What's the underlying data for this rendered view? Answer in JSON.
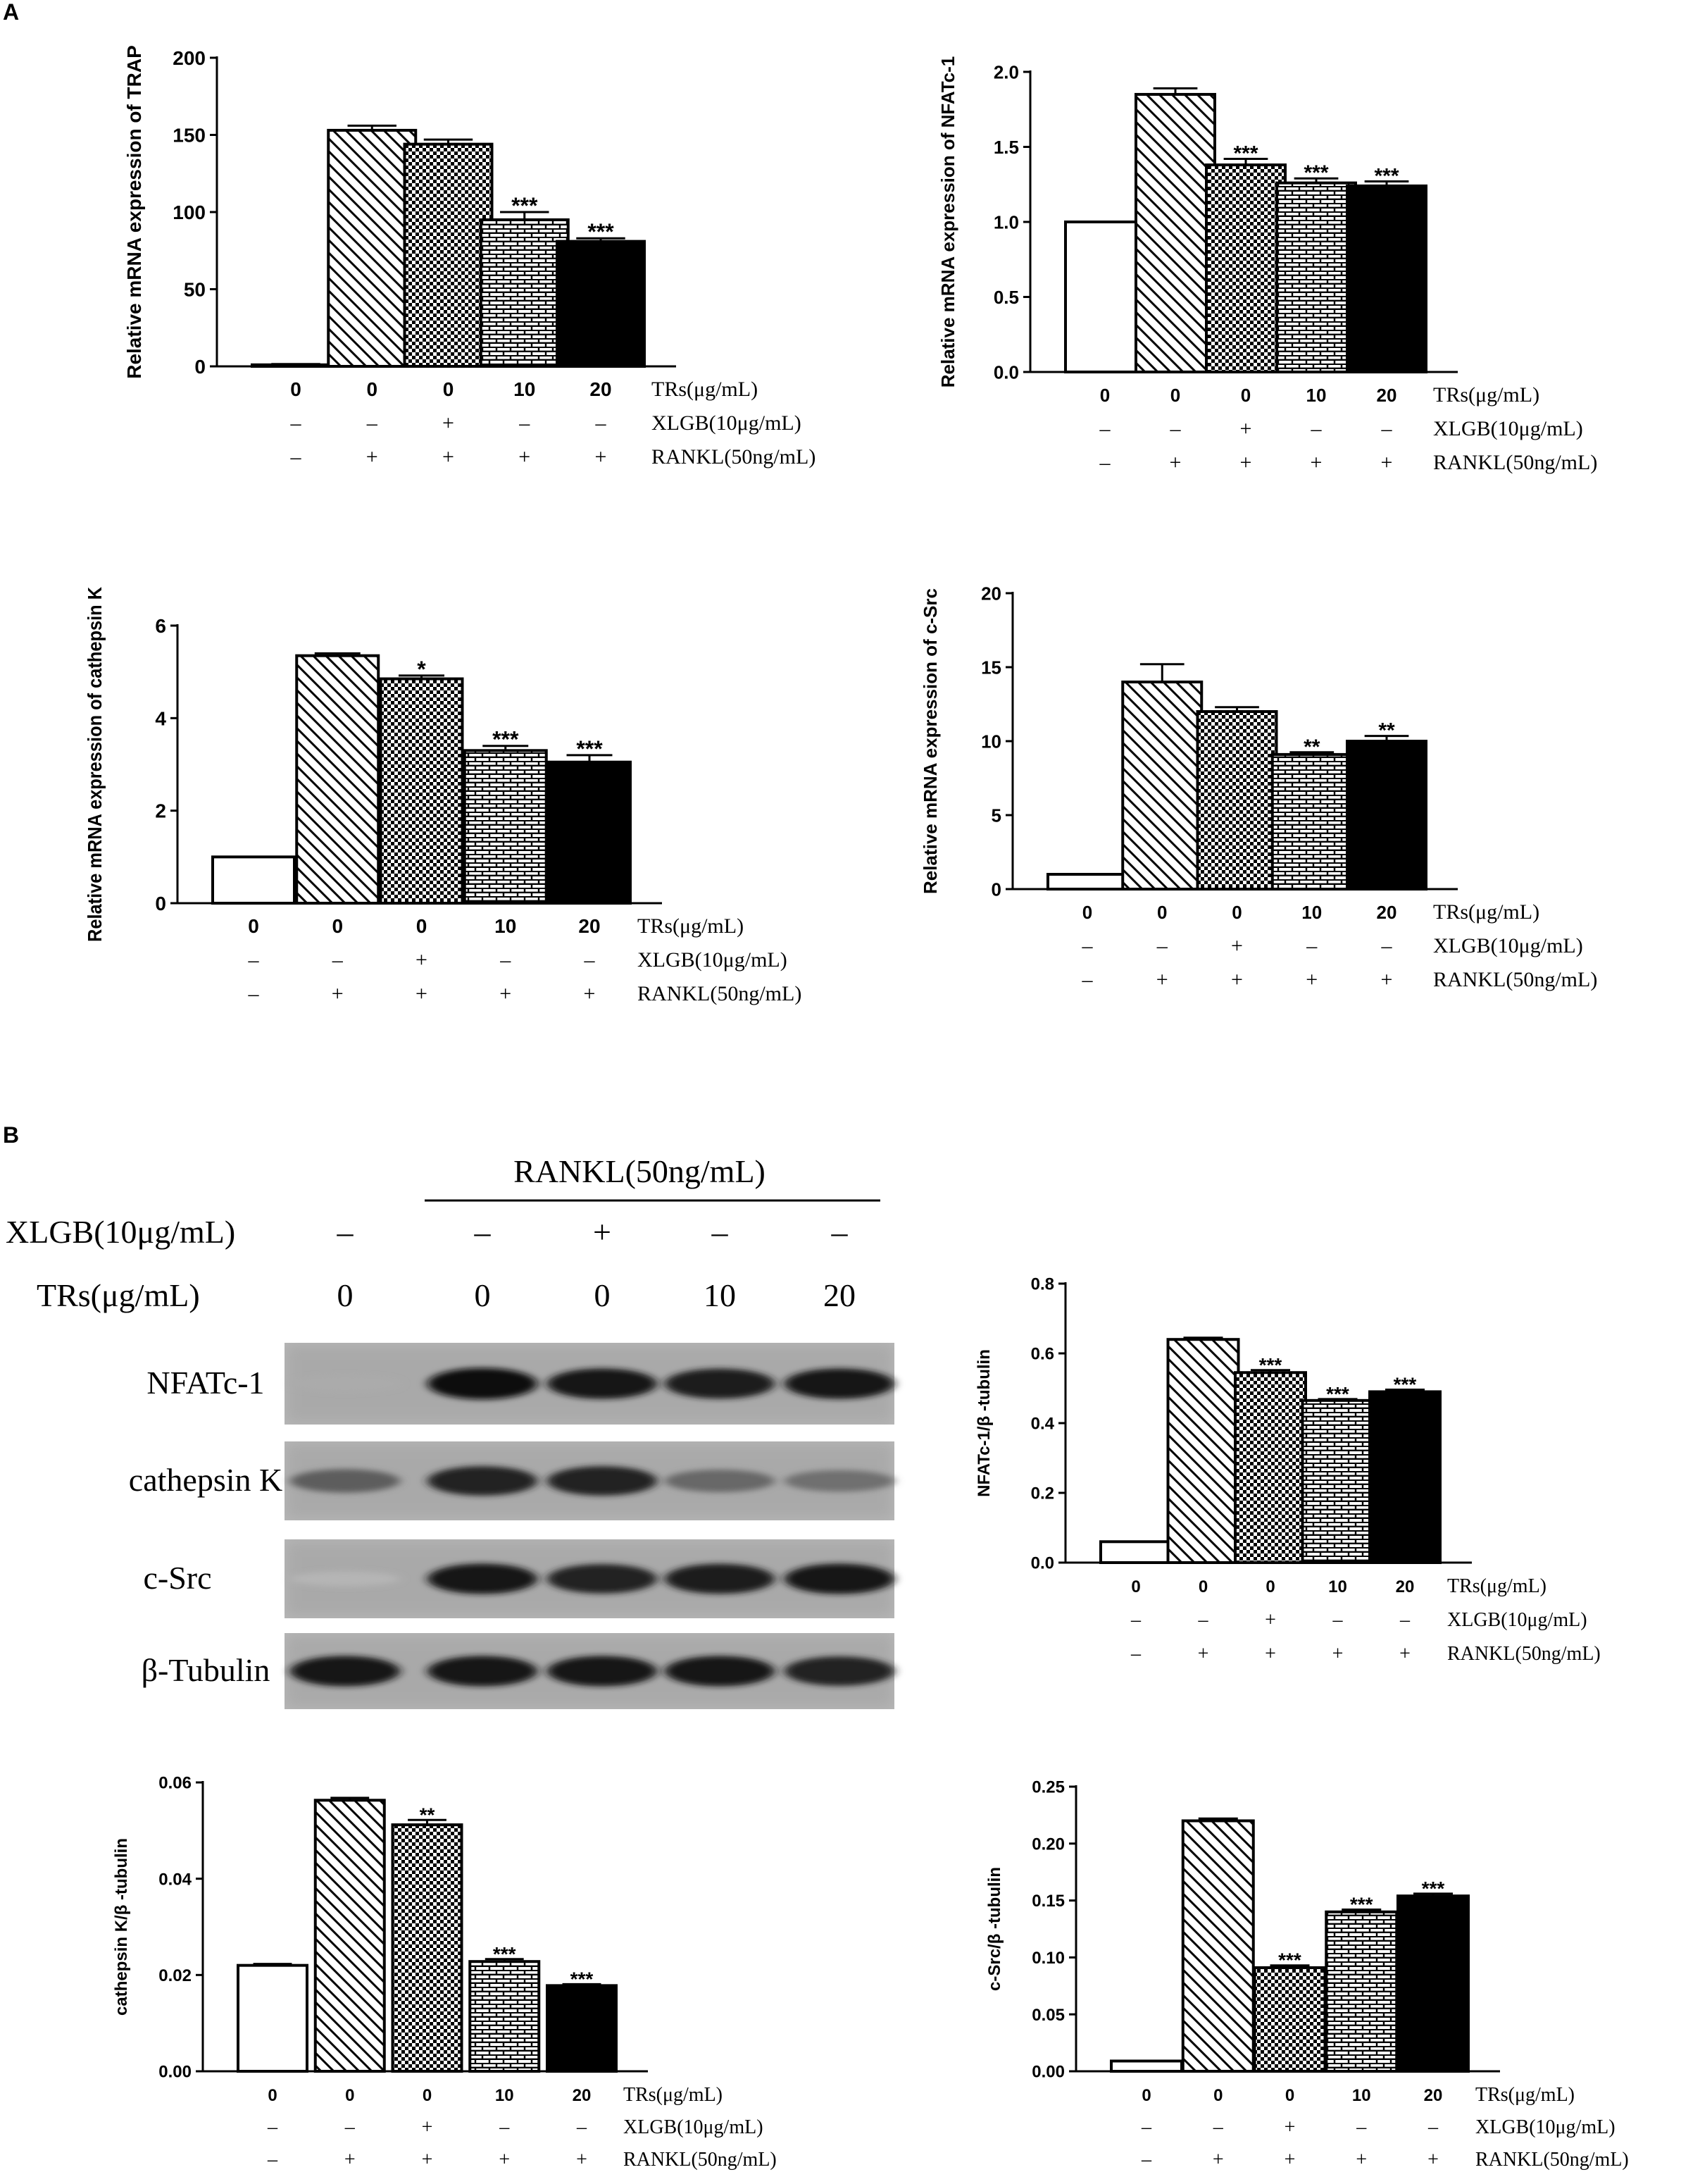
{
  "panels": {
    "a": "A",
    "b": "B"
  },
  "colors": {
    "ink": "#000000",
    "paper": "#ffffff"
  },
  "fills": [
    "empty",
    "diagonal-stripes",
    "checkerboard",
    "brick",
    "solid-black"
  ],
  "row_labels": [
    "TRs(μg/mL)",
    "XLGB(10μg/mL)",
    "RANKL(50ng/mL)"
  ],
  "groups": [
    {
      "trs": "0",
      "xlgb": "–",
      "rankl": "–"
    },
    {
      "trs": "0",
      "xlgb": "–",
      "rankl": "+"
    },
    {
      "trs": "0",
      "xlgb": "+",
      "rankl": "+"
    },
    {
      "trs": "10",
      "xlgb": "–",
      "rankl": "+"
    },
    {
      "trs": "20",
      "xlgb": "–",
      "rankl": "+"
    }
  ],
  "western_blot": {
    "header": "RANKL(50ng/mL)",
    "xlgb_label": "XLGB(10μg/mL)",
    "trs_label": "TRs(μg/mL)",
    "xlgb_values": [
      "–",
      "–",
      "+",
      "–",
      "–"
    ],
    "trs_values": [
      "0",
      "0",
      "0",
      "10",
      "20"
    ],
    "bands": [
      {
        "label": "NFATc-1",
        "intensity": [
          0.15,
          0.95,
          0.9,
          0.88,
          0.9
        ]
      },
      {
        "label": "cathepsin K",
        "intensity": [
          0.55,
          0.85,
          0.85,
          0.5,
          0.45
        ]
      },
      {
        "label": "c-Src",
        "intensity": [
          0.1,
          0.9,
          0.85,
          0.88,
          0.9
        ]
      },
      {
        "label": "β-Tubulin",
        "intensity": [
          0.9,
          0.9,
          0.9,
          0.9,
          0.85
        ]
      }
    ]
  },
  "chart_data": [
    {
      "type": "bar",
      "ylabel": "Relative mRNA expression of TRAP",
      "ylim": [
        0,
        200
      ],
      "yticks": [
        "0",
        "50",
        "100",
        "150",
        "200"
      ],
      "categories": [
        "0",
        "0",
        "0",
        "10",
        "20"
      ],
      "values": [
        1,
        153,
        144,
        95,
        81
      ],
      "errors": [
        0.5,
        3,
        3,
        5,
        2
      ],
      "significance": [
        "",
        "",
        "",
        "***",
        "***"
      ]
    },
    {
      "type": "bar",
      "ylabel": "Relative mRNA expression of NFATc-1",
      "ylim": [
        0,
        2.0
      ],
      "yticks": [
        "0.0",
        "0.5",
        "1.0",
        "1.5",
        "2.0"
      ],
      "categories": [
        "0",
        "0",
        "0",
        "10",
        "20"
      ],
      "values": [
        1.0,
        1.85,
        1.38,
        1.26,
        1.24
      ],
      "errors": [
        0,
        0.04,
        0.04,
        0.03,
        0.03
      ],
      "significance": [
        "",
        "",
        "***",
        "***",
        "***"
      ]
    },
    {
      "type": "bar",
      "ylabel": "Relative mRNA expression of cathepsin K",
      "ylim": [
        0,
        6
      ],
      "yticks": [
        "0",
        "2",
        "4",
        "6"
      ],
      "categories": [
        "0",
        "0",
        "0",
        "10",
        "20"
      ],
      "values": [
        1.0,
        5.35,
        4.85,
        3.3,
        3.05
      ],
      "errors": [
        0,
        0.05,
        0.07,
        0.1,
        0.15
      ],
      "significance": [
        "",
        "",
        "*",
        "***",
        "***"
      ]
    },
    {
      "type": "bar",
      "ylabel": "Relative mRNA expression of c-Src",
      "ylim": [
        0,
        20
      ],
      "yticks": [
        "0",
        "5",
        "10",
        "15",
        "20"
      ],
      "categories": [
        "0",
        "0",
        "0",
        "10",
        "20"
      ],
      "values": [
        1.0,
        14.0,
        12.0,
        9.1,
        10.0
      ],
      "errors": [
        0,
        1.2,
        0.3,
        0.15,
        0.35
      ],
      "significance": [
        "",
        "",
        "",
        "**",
        "**"
      ]
    },
    {
      "type": "bar",
      "ylabel": "NFATc-1/β -tubulin",
      "ylim": [
        0,
        0.8
      ],
      "yticks": [
        "0.0",
        "0.2",
        "0.4",
        "0.6",
        "0.8"
      ],
      "categories": [
        "0",
        "0",
        "0",
        "10",
        "20"
      ],
      "values": [
        0.06,
        0.64,
        0.545,
        0.465,
        0.49
      ],
      "errors": [
        0,
        0.005,
        0.007,
        0.004,
        0.006
      ],
      "significance": [
        "",
        "",
        "***",
        "***",
        "***"
      ]
    },
    {
      "type": "bar",
      "ylabel": "cathepsin K/β -tubulin",
      "ylim": [
        0,
        0.06
      ],
      "yticks": [
        "0.00",
        "0.02",
        "0.04",
        "0.06"
      ],
      "categories": [
        "0",
        "0",
        "0",
        "10",
        "20"
      ],
      "values": [
        0.022,
        0.0563,
        0.0512,
        0.0228,
        0.0178
      ],
      "errors": [
        0.0003,
        0.0005,
        0.001,
        0.0005,
        0.0003
      ],
      "significance": [
        "",
        "",
        "**",
        "***",
        "***"
      ]
    },
    {
      "type": "bar",
      "ylabel": "c-Src/β -tubulin",
      "ylim": [
        0,
        0.25
      ],
      "yticks": [
        "0.00",
        "0.05",
        "0.10",
        "0.15",
        "0.20",
        "0.25"
      ],
      "categories": [
        "0",
        "0",
        "0",
        "10",
        "20"
      ],
      "values": [
        0.009,
        0.22,
        0.091,
        0.14,
        0.154
      ],
      "errors": [
        0,
        0.002,
        0.002,
        0.002,
        0.002
      ],
      "significance": [
        "",
        "",
        "***",
        "***",
        "***"
      ]
    }
  ]
}
